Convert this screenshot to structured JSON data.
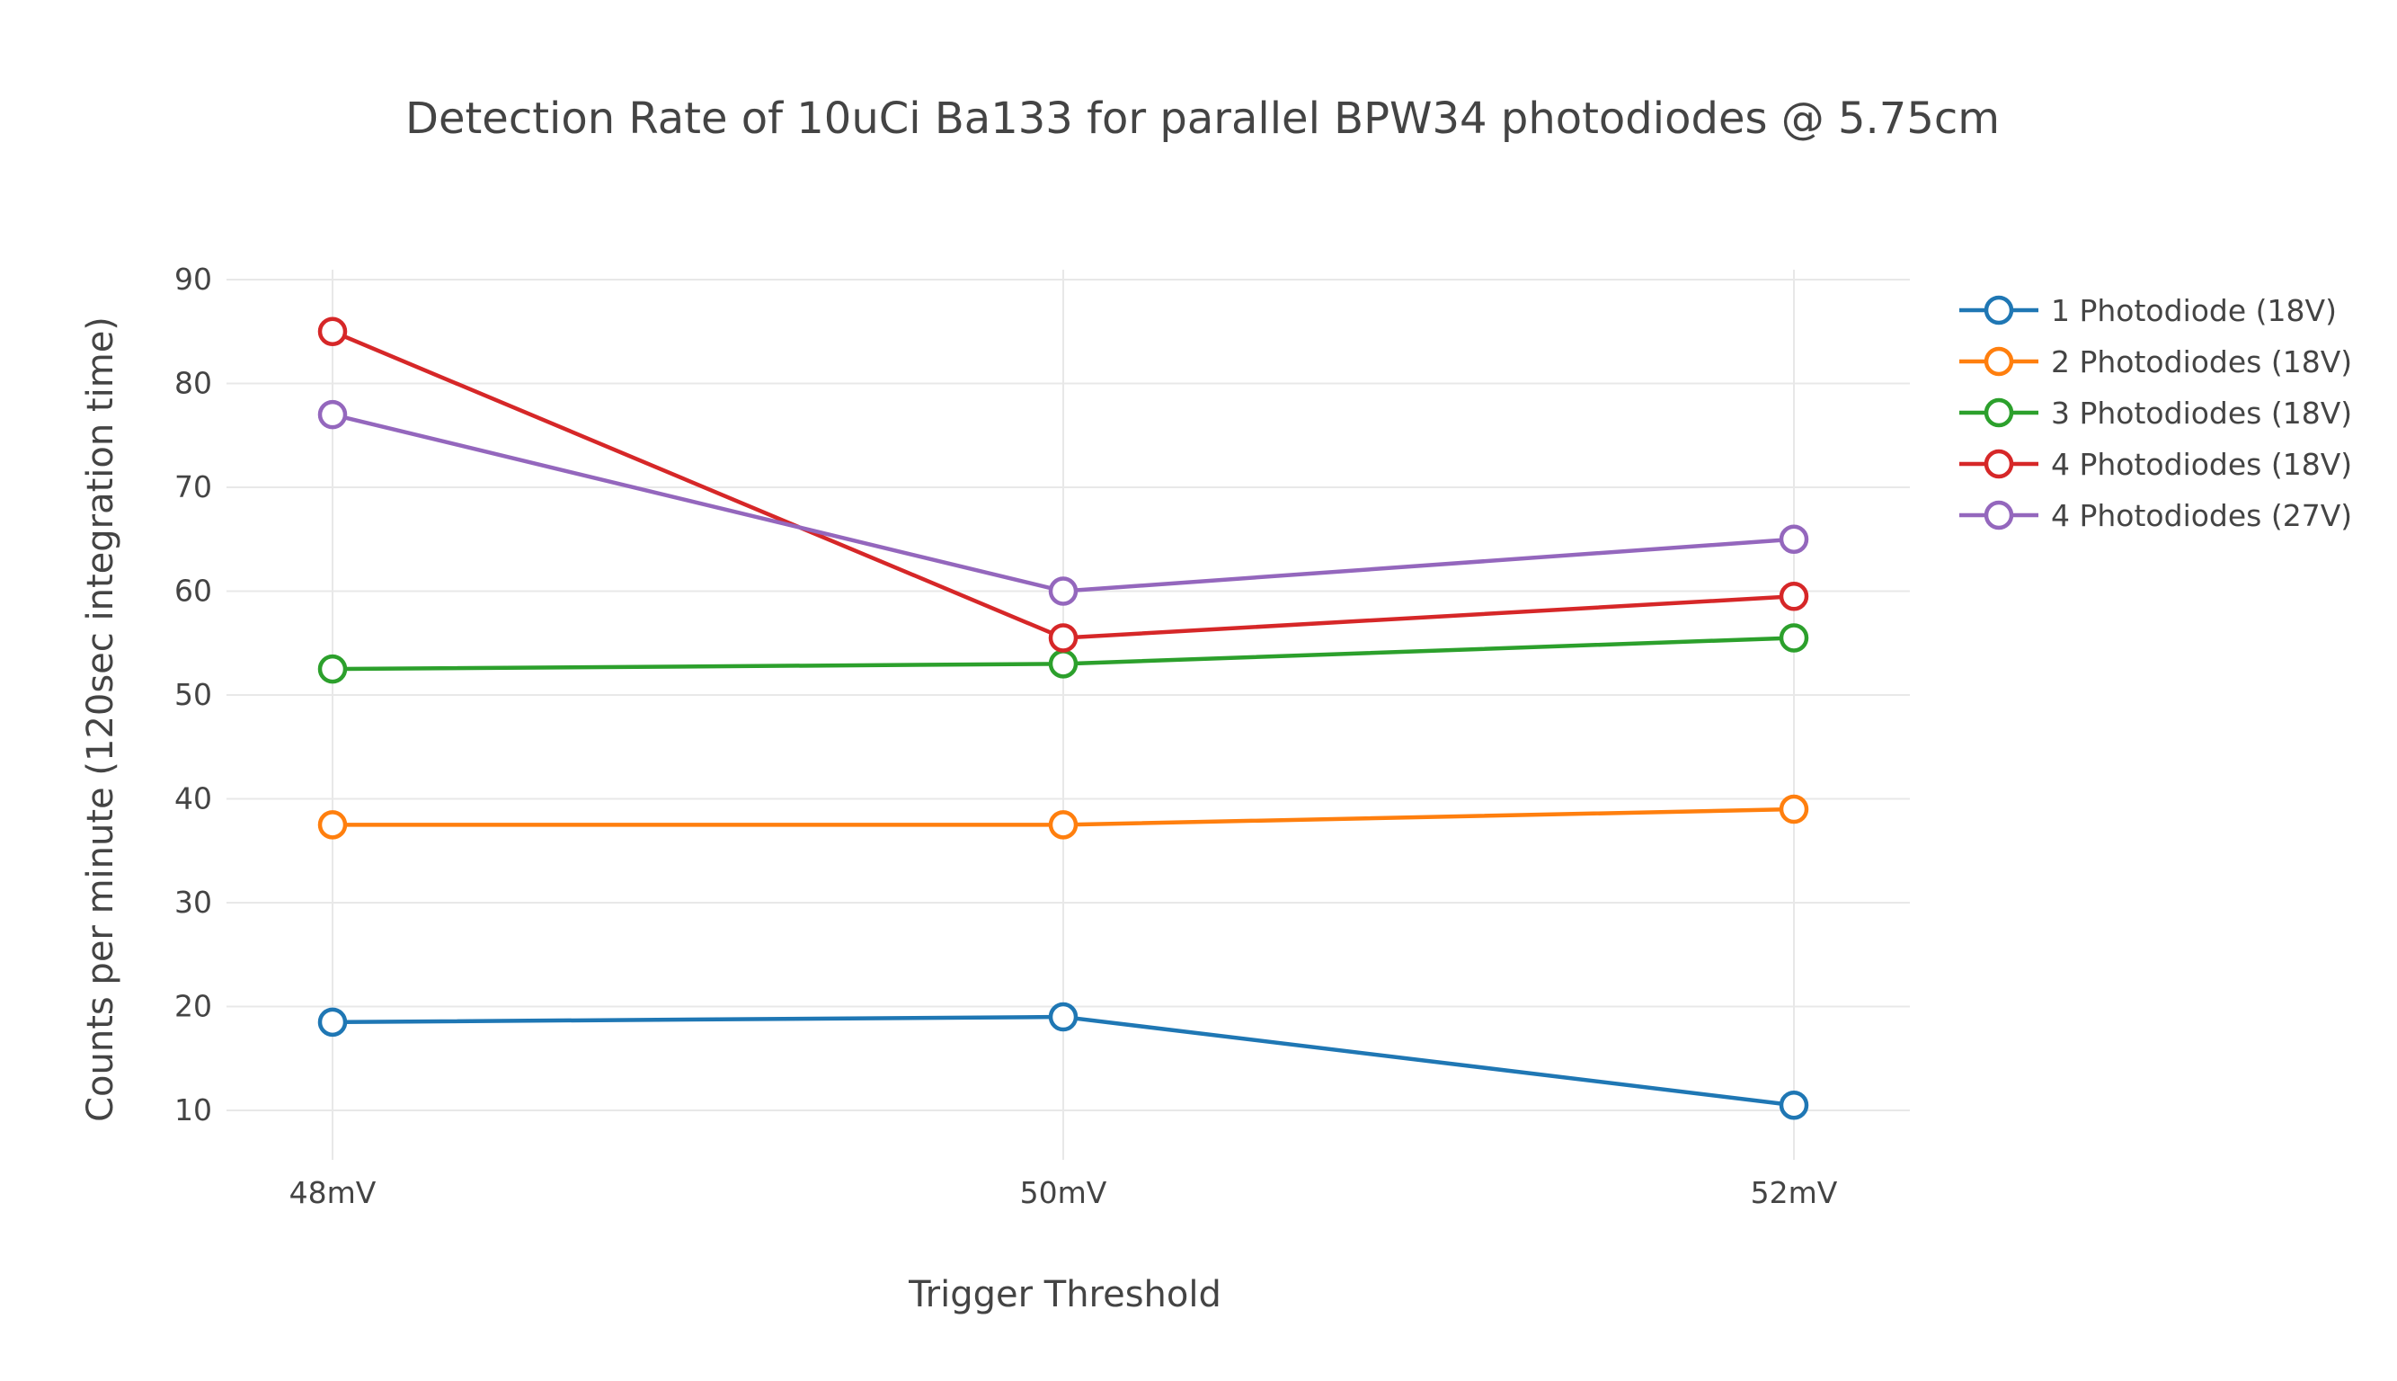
{
  "chart_data": {
    "type": "line",
    "title": "Detection Rate of 10uCi Ba133 for parallel BPW34 photodiodes @ 5.75cm",
    "xlabel": "Trigger Threshold",
    "ylabel": "Counts per minute (120sec integration time)",
    "categories": [
      "48mV",
      "50mV",
      "52mV"
    ],
    "y_ticks": [
      10,
      20,
      30,
      40,
      50,
      60,
      70,
      80,
      90
    ],
    "ylim": [
      5,
      92
    ],
    "grid": true,
    "legend_position": "top-right",
    "series": [
      {
        "name": "1 Photodiode (18V)",
        "color": "#1f77b4",
        "values": [
          18.5,
          19,
          10.5
        ]
      },
      {
        "name": "2 Photodiodes (18V)",
        "color": "#ff7f0e",
        "values": [
          37.5,
          37.5,
          39
        ]
      },
      {
        "name": "3 Photodiodes (18V)",
        "color": "#2ca02c",
        "values": [
          52.5,
          53,
          55.5
        ]
      },
      {
        "name": "4 Photodiodes (18V)",
        "color": "#d62728",
        "values": [
          85,
          55.5,
          59.5
        ]
      },
      {
        "name": "4 Photodiodes (27V)",
        "color": "#9467bd",
        "values": [
          77,
          60,
          65
        ]
      }
    ]
  }
}
